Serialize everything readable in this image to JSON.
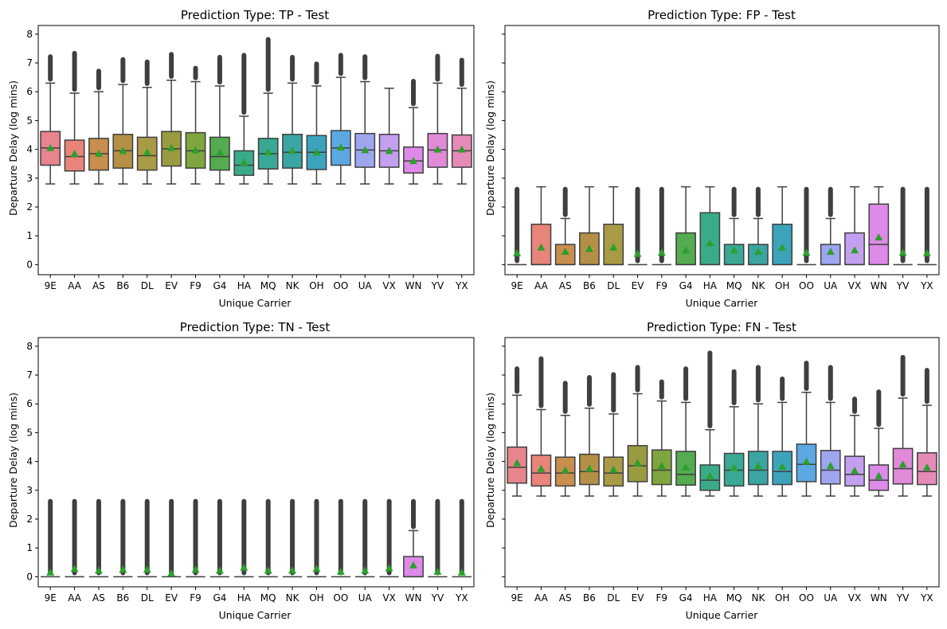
{
  "figure": {
    "carriers": [
      "9E",
      "AA",
      "AS",
      "B6",
      "DL",
      "EV",
      "F9",
      "G4",
      "HA",
      "MQ",
      "NK",
      "OH",
      "OO",
      "UA",
      "VX",
      "WN",
      "YV",
      "YX"
    ],
    "colors": [
      "#e8848d",
      "#e8847a",
      "#c88e4e",
      "#b49046",
      "#a99a46",
      "#9a9b40",
      "#7ea53e",
      "#55ab4f",
      "#3aab89",
      "#39a894",
      "#3ba5a3",
      "#3ba4bb",
      "#5ca8e3",
      "#9ea6f0",
      "#c39ff0",
      "#dd8ae8",
      "#e08ad8",
      "#e68ab8"
    ],
    "mean_marker_color": "#2ca02c"
  },
  "chart_data": [
    {
      "type": "box",
      "title": "Prediction Type: TP - Test",
      "xlabel": "Unique Carrier",
      "ylabel": "Departure Delay (log mins)",
      "ylim": [
        -0.35,
        8.3
      ],
      "yticks": [
        0,
        1,
        2,
        3,
        4,
        5,
        6,
        7,
        8
      ],
      "show_ytick_labels": true,
      "boxes": [
        {
          "whislo": 2.8,
          "q1": 3.45,
          "med": 4.05,
          "q3": 4.62,
          "whishi": 6.3,
          "mean": 4.05,
          "outlier_max": 7.3
        },
        {
          "whislo": 2.8,
          "q1": 3.25,
          "med": 3.75,
          "q3": 4.32,
          "whishi": 5.95,
          "mean": 3.85,
          "outlier_max": 7.42
        },
        {
          "whislo": 2.8,
          "q1": 3.28,
          "med": 3.85,
          "q3": 4.38,
          "whishi": 6.0,
          "mean": 3.85,
          "outlier_max": 6.8
        },
        {
          "whislo": 2.8,
          "q1": 3.35,
          "med": 3.95,
          "q3": 4.52,
          "whishi": 6.25,
          "mean": 3.95,
          "outlier_max": 7.2
        },
        {
          "whislo": 2.8,
          "q1": 3.28,
          "med": 3.78,
          "q3": 4.42,
          "whishi": 6.15,
          "mean": 3.9,
          "outlier_max": 7.12
        },
        {
          "whislo": 2.8,
          "q1": 3.42,
          "med": 4.02,
          "q3": 4.62,
          "whishi": 6.4,
          "mean": 4.05,
          "outlier_max": 7.38
        },
        {
          "whislo": 2.8,
          "q1": 3.35,
          "med": 3.95,
          "q3": 4.58,
          "whishi": 6.35,
          "mean": 3.97,
          "outlier_max": 6.9
        },
        {
          "whislo": 2.8,
          "q1": 3.28,
          "med": 3.75,
          "q3": 4.42,
          "whishi": 6.2,
          "mean": 3.9,
          "outlier_max": 7.28
        },
        {
          "whislo": 2.8,
          "q1": 3.1,
          "med": 3.45,
          "q3": 3.95,
          "whishi": 5.15,
          "mean": 3.55,
          "outlier_max": 7.35
        },
        {
          "whislo": 2.8,
          "q1": 3.32,
          "med": 3.85,
          "q3": 4.38,
          "whishi": 5.95,
          "mean": 3.9,
          "outlier_max": 7.9
        },
        {
          "whislo": 2.8,
          "q1": 3.35,
          "med": 3.9,
          "q3": 4.52,
          "whishi": 6.3,
          "mean": 3.95,
          "outlier_max": 7.28
        },
        {
          "whislo": 2.8,
          "q1": 3.3,
          "med": 3.9,
          "q3": 4.48,
          "whishi": 6.2,
          "mean": 3.9,
          "outlier_max": 7.05
        },
        {
          "whislo": 2.8,
          "q1": 3.45,
          "med": 4.05,
          "q3": 4.65,
          "whishi": 6.5,
          "mean": 4.07,
          "outlier_max": 7.35
        },
        {
          "whislo": 2.8,
          "q1": 3.38,
          "med": 3.98,
          "q3": 4.55,
          "whishi": 6.35,
          "mean": 3.98,
          "outlier_max": 7.3
        },
        {
          "whislo": 2.8,
          "q1": 3.38,
          "med": 3.95,
          "q3": 4.52,
          "whishi": 6.12,
          "mean": 3.95,
          "outlier_max": null
        },
        {
          "whislo": 2.8,
          "q1": 3.18,
          "med": 3.6,
          "q3": 4.08,
          "whishi": 5.45,
          "mean": 3.6,
          "outlier_max": 6.45
        },
        {
          "whislo": 2.8,
          "q1": 3.38,
          "med": 3.98,
          "q3": 4.55,
          "whishi": 6.3,
          "mean": 4.0,
          "outlier_max": 7.32
        },
        {
          "whislo": 2.8,
          "q1": 3.38,
          "med": 3.95,
          "q3": 4.5,
          "whishi": 6.12,
          "mean": 4.0,
          "outlier_max": 7.18
        }
      ]
    },
    {
      "type": "box",
      "title": "Prediction Type: FP - Test",
      "xlabel": "Unique Carrier",
      "ylabel": "Departure Delay (log mins)",
      "ylim": [
        -0.35,
        8.3
      ],
      "yticks": [
        0,
        1,
        2,
        3,
        4,
        5,
        6,
        7,
        8
      ],
      "show_ytick_labels": false,
      "boxes": [
        {
          "whislo": 0,
          "q1": 0,
          "med": 0,
          "q3": 0,
          "whishi": 0,
          "mean": 0.4,
          "outlier_max": 2.7
        },
        {
          "whislo": 0,
          "q1": 0,
          "med": 0,
          "q3": 1.4,
          "whishi": 2.7,
          "mean": 0.6,
          "outlier_max": null
        },
        {
          "whislo": 0,
          "q1": 0,
          "med": 0,
          "q3": 0.7,
          "whishi": 1.6,
          "mean": 0.45,
          "outlier_max": 2.7
        },
        {
          "whislo": 0,
          "q1": 0,
          "med": 0,
          "q3": 1.1,
          "whishi": 2.7,
          "mean": 0.55,
          "outlier_max": null
        },
        {
          "whislo": 0,
          "q1": 0,
          "med": 0,
          "q3": 1.4,
          "whishi": 2.7,
          "mean": 0.6,
          "outlier_max": null
        },
        {
          "whislo": 0,
          "q1": 0,
          "med": 0,
          "q3": 0,
          "whishi": 0,
          "mean": 0.38,
          "outlier_max": 2.7
        },
        {
          "whislo": 0,
          "q1": 0,
          "med": 0,
          "q3": 0,
          "whishi": 0,
          "mean": 0.42,
          "outlier_max": 2.7
        },
        {
          "whislo": 0,
          "q1": 0,
          "med": 0,
          "q3": 1.1,
          "whishi": 2.7,
          "mean": 0.5,
          "outlier_max": null
        },
        {
          "whislo": 0,
          "q1": 0,
          "med": 0,
          "q3": 1.8,
          "whishi": 2.7,
          "mean": 0.75,
          "outlier_max": null
        },
        {
          "whislo": 0,
          "q1": 0,
          "med": 0,
          "q3": 0.7,
          "whishi": 1.6,
          "mean": 0.5,
          "outlier_max": 2.7
        },
        {
          "whislo": 0,
          "q1": 0,
          "med": 0,
          "q3": 0.7,
          "whishi": 1.6,
          "mean": 0.45,
          "outlier_max": 2.7
        },
        {
          "whislo": 0,
          "q1": 0,
          "med": 0,
          "q3": 1.4,
          "whishi": 2.7,
          "mean": 0.6,
          "outlier_max": null
        },
        {
          "whislo": 0,
          "q1": 0,
          "med": 0,
          "q3": 0,
          "whishi": 0,
          "mean": 0.42,
          "outlier_max": 2.7
        },
        {
          "whislo": 0,
          "q1": 0,
          "med": 0,
          "q3": 0.7,
          "whishi": 1.6,
          "mean": 0.45,
          "outlier_max": 2.7
        },
        {
          "whislo": 0,
          "q1": 0,
          "med": 0,
          "q3": 1.1,
          "whishi": 2.7,
          "mean": 0.5,
          "outlier_max": null
        },
        {
          "whislo": 0,
          "q1": 0,
          "med": 0.7,
          "q3": 2.1,
          "whishi": 2.7,
          "mean": 0.95,
          "outlier_max": null
        },
        {
          "whislo": 0,
          "q1": 0,
          "med": 0,
          "q3": 0,
          "whishi": 0,
          "mean": 0.42,
          "outlier_max": 2.7
        },
        {
          "whislo": 0,
          "q1": 0,
          "med": 0,
          "q3": 0,
          "whishi": 0,
          "mean": 0.4,
          "outlier_max": 2.7
        }
      ]
    },
    {
      "type": "box",
      "title": "Prediction Type: TN - Test",
      "xlabel": "Unique Carrier",
      "ylabel": "Departure Delay (log mins)",
      "ylim": [
        -0.35,
        8.3
      ],
      "yticks": [
        0,
        1,
        2,
        3,
        4,
        5,
        6,
        7,
        8
      ],
      "show_ytick_labels": true,
      "boxes": [
        {
          "whislo": 0,
          "q1": 0,
          "med": 0,
          "q3": 0,
          "whishi": 0,
          "mean": 0.15,
          "outlier_max": 2.7
        },
        {
          "whislo": 0,
          "q1": 0,
          "med": 0,
          "q3": 0,
          "whishi": 0,
          "mean": 0.28,
          "outlier_max": 2.7
        },
        {
          "whislo": 0,
          "q1": 0,
          "med": 0,
          "q3": 0,
          "whishi": 0,
          "mean": 0.22,
          "outlier_max": 2.7
        },
        {
          "whislo": 0,
          "q1": 0,
          "med": 0,
          "q3": 0,
          "whishi": 0,
          "mean": 0.25,
          "outlier_max": 2.7
        },
        {
          "whislo": 0,
          "q1": 0,
          "med": 0,
          "q3": 0,
          "whishi": 0,
          "mean": 0.25,
          "outlier_max": 2.7
        },
        {
          "whislo": 0,
          "q1": 0,
          "med": 0,
          "q3": 0,
          "whishi": 0,
          "mean": 0.12,
          "outlier_max": 2.7
        },
        {
          "whislo": 0,
          "q1": 0,
          "med": 0,
          "q3": 0,
          "whishi": 0,
          "mean": 0.25,
          "outlier_max": 2.7
        },
        {
          "whislo": 0,
          "q1": 0,
          "med": 0,
          "q3": 0,
          "whishi": 0,
          "mean": 0.22,
          "outlier_max": 2.7
        },
        {
          "whislo": 0,
          "q1": 0,
          "med": 0,
          "q3": 0,
          "whishi": 0,
          "mean": 0.32,
          "outlier_max": 2.7
        },
        {
          "whislo": 0,
          "q1": 0,
          "med": 0,
          "q3": 0,
          "whishi": 0,
          "mean": 0.22,
          "outlier_max": 2.7
        },
        {
          "whislo": 0,
          "q1": 0,
          "med": 0,
          "q3": 0,
          "whishi": 0,
          "mean": 0.22,
          "outlier_max": 2.7
        },
        {
          "whislo": 0,
          "q1": 0,
          "med": 0,
          "q3": 0,
          "whishi": 0,
          "mean": 0.28,
          "outlier_max": 2.7
        },
        {
          "whislo": 0,
          "q1": 0,
          "med": 0,
          "q3": 0,
          "whishi": 0,
          "mean": 0.18,
          "outlier_max": 2.7
        },
        {
          "whislo": 0,
          "q1": 0,
          "med": 0,
          "q3": 0,
          "whishi": 0,
          "mean": 0.22,
          "outlier_max": 2.7
        },
        {
          "whislo": 0,
          "q1": 0,
          "med": 0,
          "q3": 0,
          "whishi": 0,
          "mean": 0.3,
          "outlier_max": 2.7
        },
        {
          "whislo": 0,
          "q1": 0,
          "med": 0,
          "q3": 0.7,
          "whishi": 1.6,
          "mean": 0.4,
          "outlier_max": 2.7
        },
        {
          "whislo": 0,
          "q1": 0,
          "med": 0,
          "q3": 0,
          "whishi": 0,
          "mean": 0.18,
          "outlier_max": 2.7
        },
        {
          "whislo": 0,
          "q1": 0,
          "med": 0,
          "q3": 0,
          "whishi": 0,
          "mean": 0.15,
          "outlier_max": 2.7
        }
      ]
    },
    {
      "type": "box",
      "title": "Prediction Type: FN - Test",
      "xlabel": "Unique Carrier",
      "ylabel": "Departure Delay (log mins)",
      "ylim": [
        -0.35,
        8.3
      ],
      "yticks": [
        0,
        1,
        2,
        3,
        4,
        5,
        6,
        7,
        8
      ],
      "show_ytick_labels": false,
      "boxes": [
        {
          "whislo": 2.8,
          "q1": 3.25,
          "med": 3.8,
          "q3": 4.5,
          "whishi": 6.3,
          "mean": 3.95,
          "outlier_max": 7.3
        },
        {
          "whislo": 2.8,
          "q1": 3.15,
          "med": 3.6,
          "q3": 4.22,
          "whishi": 5.8,
          "mean": 3.75,
          "outlier_max": 7.65
        },
        {
          "whislo": 2.8,
          "q1": 3.15,
          "med": 3.6,
          "q3": 4.15,
          "whishi": 5.6,
          "mean": 3.7,
          "outlier_max": 6.8
        },
        {
          "whislo": 2.8,
          "q1": 3.2,
          "med": 3.65,
          "q3": 4.25,
          "whishi": 5.85,
          "mean": 3.75,
          "outlier_max": 7.0
        },
        {
          "whislo": 2.8,
          "q1": 3.15,
          "med": 3.6,
          "q3": 4.15,
          "whishi": 5.65,
          "mean": 3.72,
          "outlier_max": 7.1
        },
        {
          "whislo": 2.8,
          "q1": 3.3,
          "med": 3.85,
          "q3": 4.55,
          "whishi": 6.35,
          "mean": 3.95,
          "outlier_max": 7.35
        },
        {
          "whislo": 2.8,
          "q1": 3.2,
          "med": 3.7,
          "q3": 4.4,
          "whishi": 6.1,
          "mean": 3.85,
          "outlier_max": 6.85
        },
        {
          "whislo": 2.8,
          "q1": 3.18,
          "med": 3.55,
          "q3": 4.35,
          "whishi": 6.05,
          "mean": 3.8,
          "outlier_max": 7.3
        },
        {
          "whislo": 2.8,
          "q1": 3.0,
          "med": 3.35,
          "q3": 3.88,
          "whishi": 5.1,
          "mean": 3.5,
          "outlier_max": 7.85
        },
        {
          "whislo": 2.8,
          "q1": 3.15,
          "med": 3.7,
          "q3": 4.28,
          "whishi": 5.9,
          "mean": 3.78,
          "outlier_max": 7.2
        },
        {
          "whislo": 2.8,
          "q1": 3.2,
          "med": 3.7,
          "q3": 4.35,
          "whishi": 6.0,
          "mean": 3.85,
          "outlier_max": 7.35
        },
        {
          "whislo": 2.8,
          "q1": 3.2,
          "med": 3.65,
          "q3": 4.35,
          "whishi": 6.05,
          "mean": 3.82,
          "outlier_max": 6.95
        },
        {
          "whislo": 2.8,
          "q1": 3.3,
          "med": 3.9,
          "q3": 4.6,
          "whishi": 6.4,
          "mean": 4.0,
          "outlier_max": 7.5
        },
        {
          "whislo": 2.8,
          "q1": 3.22,
          "med": 3.7,
          "q3": 4.38,
          "whishi": 6.05,
          "mean": 3.85,
          "outlier_max": 7.35
        },
        {
          "whislo": 2.8,
          "q1": 3.15,
          "med": 3.55,
          "q3": 4.18,
          "whishi": 5.6,
          "mean": 3.68,
          "outlier_max": 6.25
        },
        {
          "whislo": 2.8,
          "q1": 3.0,
          "med": 3.35,
          "q3": 3.88,
          "whishi": 5.15,
          "mean": 3.5,
          "outlier_max": 6.5
        },
        {
          "whislo": 2.8,
          "q1": 3.22,
          "med": 3.75,
          "q3": 4.45,
          "whishi": 6.2,
          "mean": 3.9,
          "outlier_max": 7.7
        },
        {
          "whislo": 2.8,
          "q1": 3.2,
          "med": 3.65,
          "q3": 4.3,
          "whishi": 5.95,
          "mean": 3.8,
          "outlier_max": 7.25
        }
      ]
    }
  ]
}
